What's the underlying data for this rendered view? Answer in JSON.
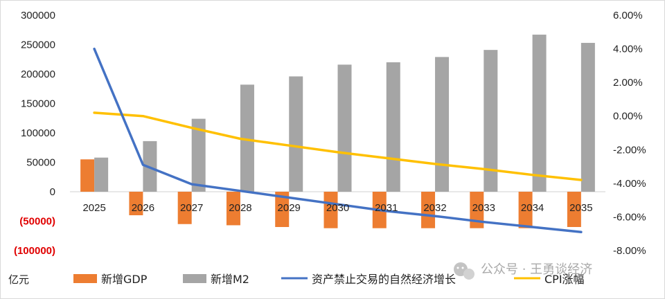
{
  "colors": {
    "gdp": "#ED7D31",
    "m2": "#A5A5A5",
    "natural": "#4472C4",
    "cpi": "#FFC000",
    "negative_label": "#E00000",
    "watermark": "#9A9A9A"
  },
  "unit_label": "亿元",
  "left_axis_ticks": [
    "300000",
    "250000",
    "200000",
    "150000",
    "100000",
    "50000",
    "0",
    "(50000)",
    "(100000)"
  ],
  "right_axis_ticks": [
    "6.00%",
    "4.00%",
    "2.00%",
    "0.00%",
    "-2.00%",
    "-4.00%",
    "-6.00%",
    "-8.00%"
  ],
  "legend": {
    "gdp": "新增GDP",
    "m2": "新增M2",
    "natural": "资产禁止交易的自然经济增长",
    "cpi": "CPI涨幅"
  },
  "watermark": {
    "icon": "wechat-icon",
    "text": "公众号 · 王勇谈经济"
  },
  "chart_data": {
    "type": "bar",
    "categories": [
      "2025",
      "2026",
      "2027",
      "2028",
      "2029",
      "2030",
      "2031",
      "2032",
      "2033",
      "2034",
      "2035"
    ],
    "left_axis": {
      "ylim": [
        -100000,
        300000
      ],
      "step": 50000
    },
    "right_axis": {
      "ylim": [
        -0.08,
        0.06
      ],
      "step": 0.02
    },
    "series": [
      {
        "name": "新增GDP",
        "type": "bar",
        "axis": "left",
        "values": [
          55000,
          -40000,
          -55000,
          -57000,
          -60000,
          -62000,
          -62000,
          -62000,
          -62000,
          -62000,
          -60000
        ]
      },
      {
        "name": "新增M2",
        "type": "bar",
        "axis": "left",
        "values": [
          58000,
          86000,
          124000,
          182000,
          196000,
          216000,
          220000,
          229000,
          241000,
          267000,
          253000
        ]
      },
      {
        "name": "资产禁止交易的自然经济增长",
        "type": "line",
        "axis": "right",
        "values": [
          0.04,
          -0.029,
          -0.0405,
          -0.0445,
          -0.0485,
          -0.0525,
          -0.0565,
          -0.0595,
          -0.063,
          -0.066,
          -0.069
        ]
      },
      {
        "name": "CPI涨幅",
        "type": "line",
        "axis": "right",
        "values": [
          0.002,
          0.0,
          -0.007,
          -0.0135,
          -0.0175,
          -0.0215,
          -0.025,
          -0.0285,
          -0.0315,
          -0.035,
          -0.038
        ]
      }
    ],
    "grid": false,
    "legend_position": "bottom"
  }
}
